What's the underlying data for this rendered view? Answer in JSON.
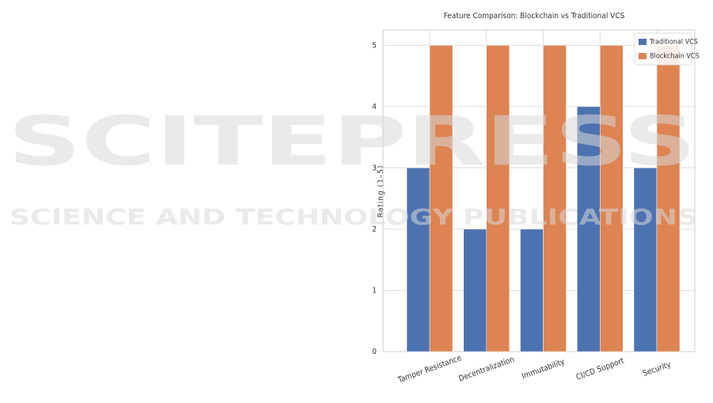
{
  "chart_data": {
    "type": "bar",
    "title": "Feature Comparison: Blockchain vs Traditional VCS",
    "ylabel": "Rating (1–5)",
    "categories": [
      "Tamper Resistance",
      "Decentralization",
      "Immutability",
      "CI/CD Support",
      "Security"
    ],
    "series": [
      {
        "name": "Traditional VCS",
        "color": "#4c72b0",
        "values": [
          3,
          2,
          2,
          4,
          3
        ]
      },
      {
        "name": "Blockchain VCS",
        "color": "#dd8452",
        "values": [
          5,
          5,
          5,
          5,
          5
        ]
      }
    ],
    "ylim": [
      0,
      5.25
    ],
    "yticks": [
      0,
      1,
      2,
      3,
      4,
      5
    ],
    "grid": true,
    "legend": "upper right"
  },
  "watermark": {
    "line1": "SCITEPRESS",
    "line2": "SCIENCE AND TECHNOLOGY PUBLICATIONS"
  }
}
